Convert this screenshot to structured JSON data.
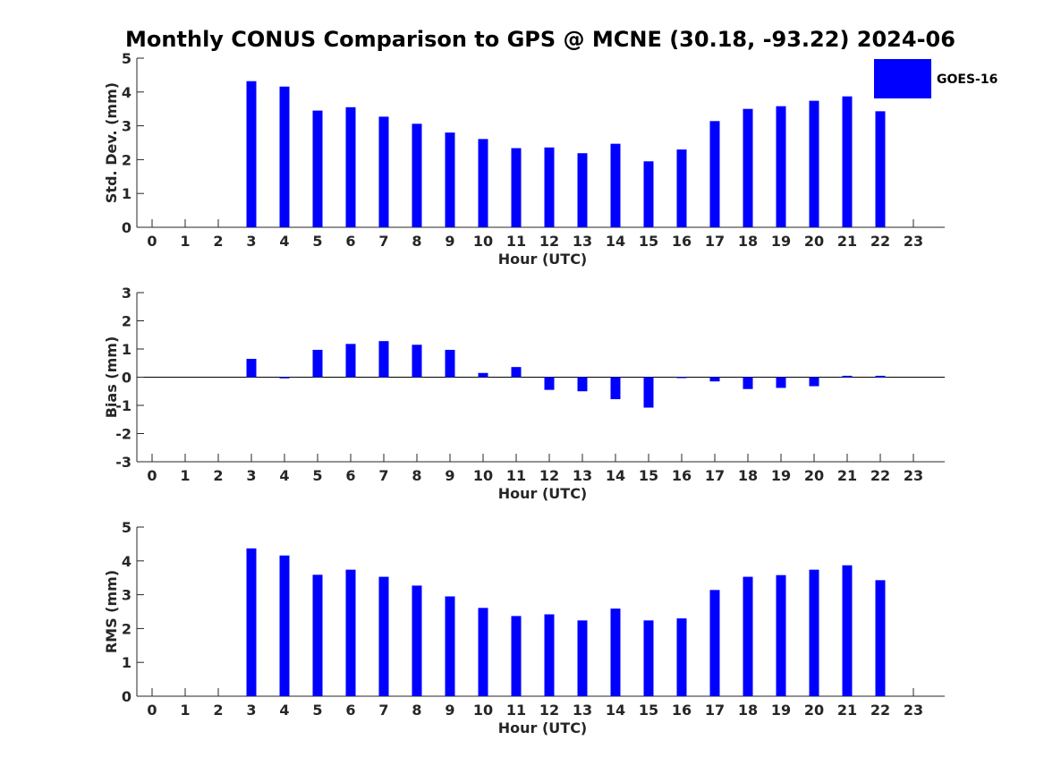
{
  "chart_data": {
    "type": "bar",
    "title": "Monthly CONUS Comparison to GPS @ MCNE (30.18, -93.22) 2024-06",
    "legend": {
      "label": "GOES-16",
      "color": "#0000ff",
      "placement": "top-right"
    },
    "panels": [
      {
        "ylabel": "Std. Dev. (mm)",
        "xlabel": "Hour (UTC)",
        "ylim": [
          0,
          5
        ],
        "yticks": [
          0,
          1,
          2,
          3,
          4,
          5
        ],
        "categories": [
          0,
          1,
          2,
          3,
          4,
          5,
          6,
          7,
          8,
          9,
          10,
          11,
          12,
          13,
          14,
          15,
          16,
          17,
          18,
          19,
          20,
          21,
          22,
          23
        ],
        "values": [
          null,
          null,
          null,
          4.32,
          4.16,
          3.45,
          3.55,
          3.27,
          3.06,
          2.8,
          2.61,
          2.34,
          2.36,
          2.19,
          2.47,
          1.95,
          2.3,
          3.14,
          3.5,
          3.58,
          3.74,
          3.87,
          3.43,
          null
        ]
      },
      {
        "ylabel": "Bias (mm)",
        "xlabel": "Hour (UTC)",
        "ylim": [
          -3,
          3
        ],
        "yticks": [
          -3,
          -2,
          -1,
          0,
          1,
          2,
          3
        ],
        "categories": [
          0,
          1,
          2,
          3,
          4,
          5,
          6,
          7,
          8,
          9,
          10,
          11,
          12,
          13,
          14,
          15,
          16,
          17,
          18,
          19,
          20,
          21,
          22,
          23
        ],
        "values": [
          null,
          null,
          null,
          0.65,
          -0.04,
          0.97,
          1.18,
          1.28,
          1.15,
          0.97,
          0.15,
          0.36,
          -0.45,
          -0.5,
          -0.78,
          -1.08,
          -0.03,
          -0.15,
          -0.42,
          -0.38,
          -0.32,
          0.05,
          0.05,
          null
        ]
      },
      {
        "ylabel": "RMS (mm)",
        "xlabel": "Hour (UTC)",
        "ylim": [
          0,
          5
        ],
        "yticks": [
          0,
          1,
          2,
          3,
          4,
          5
        ],
        "categories": [
          0,
          1,
          2,
          3,
          4,
          5,
          6,
          7,
          8,
          9,
          10,
          11,
          12,
          13,
          14,
          15,
          16,
          17,
          18,
          19,
          20,
          21,
          22,
          23
        ],
        "values": [
          null,
          null,
          null,
          4.37,
          4.16,
          3.59,
          3.74,
          3.53,
          3.27,
          2.95,
          2.61,
          2.37,
          2.42,
          2.24,
          2.59,
          2.24,
          2.3,
          3.14,
          3.53,
          3.58,
          3.74,
          3.87,
          3.43,
          null
        ]
      }
    ]
  }
}
